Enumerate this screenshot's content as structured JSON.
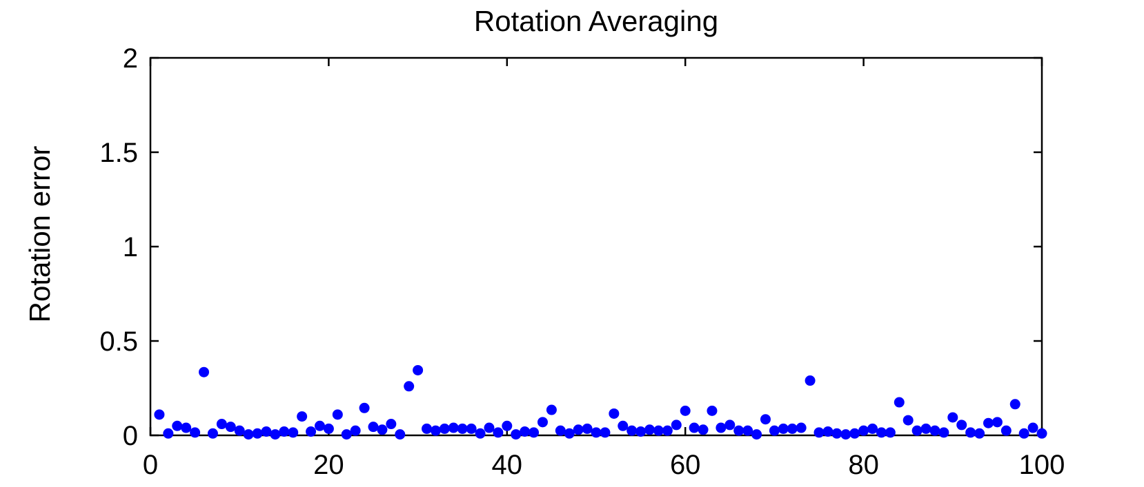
{
  "chart_data": {
    "type": "scatter",
    "title": "Rotation Averaging",
    "xlabel": "",
    "ylabel": "Rotation error",
    "xlim": [
      0,
      100
    ],
    "ylim": [
      0,
      2
    ],
    "xticks": [
      "0",
      "20",
      "40",
      "60",
      "80",
      "100"
    ],
    "yticks": [
      "0",
      "0.5",
      "1",
      "1.5",
      "2"
    ],
    "grid": false,
    "marker_color": "#0000ff",
    "x": [
      1,
      2,
      3,
      4,
      5,
      6,
      7,
      8,
      9,
      10,
      11,
      12,
      13,
      14,
      15,
      16,
      17,
      18,
      19,
      20,
      21,
      22,
      23,
      24,
      25,
      26,
      27,
      28,
      29,
      30,
      31,
      32,
      33,
      34,
      35,
      36,
      37,
      38,
      39,
      40,
      41,
      42,
      43,
      44,
      45,
      46,
      47,
      48,
      49,
      50,
      51,
      52,
      53,
      54,
      55,
      56,
      57,
      58,
      59,
      60,
      61,
      62,
      63,
      64,
      65,
      66,
      67,
      68,
      69,
      70,
      71,
      72,
      73,
      74,
      75,
      76,
      77,
      78,
      79,
      80,
      81,
      82,
      83,
      84,
      85,
      86,
      87,
      88,
      89,
      90,
      91,
      92,
      93,
      94,
      95,
      96,
      97,
      98,
      99,
      100
    ],
    "y": [
      0.11,
      0.01,
      0.05,
      0.04,
      0.015,
      0.335,
      0.01,
      0.06,
      0.045,
      0.025,
      0.005,
      0.01,
      0.02,
      0.005,
      0.02,
      0.015,
      0.1,
      0.02,
      0.05,
      0.035,
      0.11,
      0.005,
      0.025,
      0.145,
      0.045,
      0.03,
      0.06,
      0.005,
      0.26,
      0.345,
      0.035,
      0.025,
      0.035,
      0.04,
      0.035,
      0.035,
      0.01,
      0.04,
      0.015,
      0.05,
      0.005,
      0.02,
      0.015,
      0.07,
      0.135,
      0.025,
      0.01,
      0.03,
      0.035,
      0.015,
      0.015,
      0.115,
      0.05,
      0.025,
      0.02,
      0.03,
      0.025,
      0.025,
      0.055,
      0.13,
      0.04,
      0.03,
      0.13,
      0.04,
      0.055,
      0.025,
      0.025,
      0.005,
      0.085,
      0.025,
      0.035,
      0.035,
      0.04,
      0.29,
      0.015,
      0.02,
      0.01,
      0.005,
      0.01,
      0.025,
      0.035,
      0.015,
      0.015,
      0.175,
      0.08,
      0.025,
      0.035,
      0.025,
      0.015,
      0.095,
      0.055,
      0.015,
      0.01,
      0.065,
      0.07,
      0.025,
      0.165,
      0.01,
      0.04,
      0.01
    ]
  }
}
